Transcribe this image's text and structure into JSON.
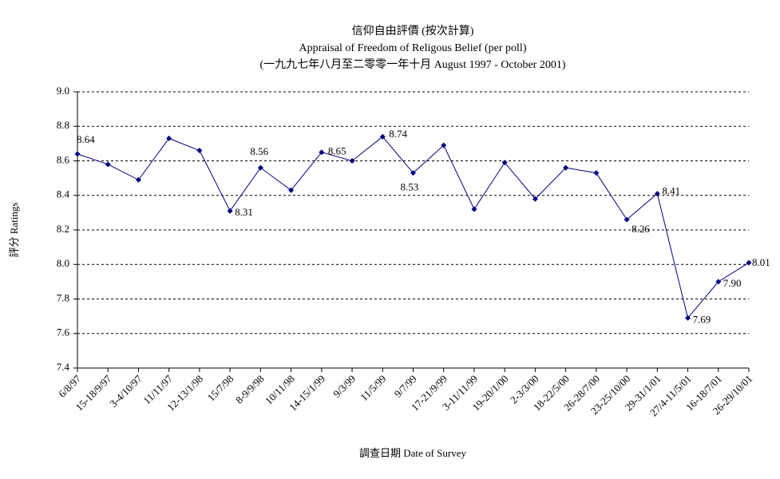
{
  "chart_data": {
    "type": "line",
    "title": "信仰自由評價 (按次計算)",
    "subtitle": "Appraisal of Freedom of Religous Belief (per poll)",
    "period": "(一九九七年八月至二零零一年十月 August 1997 - October 2001)",
    "x_label": "調查日期 Date of Survey",
    "y_label": "評分 Ratings",
    "categories": [
      "6/8/97",
      "15-18/9/97",
      "3-4/10/97",
      "11/11/97",
      "12-13/1/98",
      "15/7/98",
      "8-9/9/98",
      "10/11/98",
      "14-15/1/99",
      "9/3/99",
      "11/5/99",
      "9/7/99",
      "17-21/9/99",
      "3-11/11/99",
      "19-20/1/00",
      "2-3/3/00",
      "18-22/5/00",
      "26-28/7/00",
      "23-25/10/00",
      "29-31/1/01",
      "27/4-11/5/01",
      "16-18/7/01",
      "26-29/10/01"
    ],
    "series": [
      {
        "name": "Ratings",
        "color": "#000080",
        "values": [
          8.64,
          8.58,
          8.49,
          8.73,
          8.66,
          8.31,
          8.56,
          8.43,
          8.65,
          8.6,
          8.74,
          8.53,
          8.69,
          8.32,
          8.59,
          8.38,
          8.56,
          8.53,
          8.26,
          8.41,
          7.69,
          7.9,
          8.01
        ],
        "value_labels": [
          "8.64",
          null,
          null,
          null,
          null,
          "8.31",
          "8.56",
          null,
          "8.65",
          null,
          "8.74",
          "8.53",
          null,
          null,
          null,
          null,
          null,
          null,
          "8.26",
          "8.41",
          "7.69",
          "7.90",
          "8.01"
        ]
      }
    ],
    "ylim": [
      7.4,
      9.0
    ],
    "yticks": [
      {
        "value": 7.4,
        "label": "7.4"
      },
      {
        "value": 7.6,
        "label": "7.6"
      },
      {
        "value": 7.8,
        "label": "7.8"
      },
      {
        "value": 8.0,
        "label": "8.0"
      },
      {
        "value": 8.2,
        "label": "8.2"
      },
      {
        "value": 8.4,
        "label": "8.4"
      },
      {
        "value": 8.6,
        "label": "8.6"
      },
      {
        "value": 8.8,
        "label": "8.8"
      },
      {
        "value": 9.0,
        "label": "9.0"
      }
    ],
    "grid": true
  }
}
